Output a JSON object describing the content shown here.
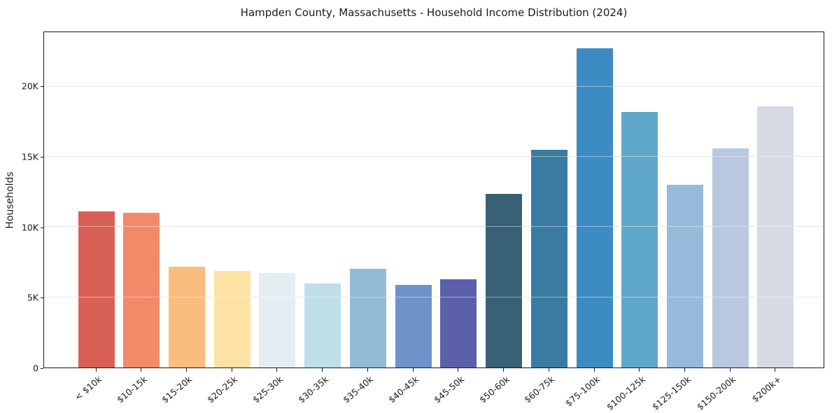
{
  "chart_data": {
    "type": "bar",
    "title": "Hampden County, Massachusetts - Household Income Distribution (2024)",
    "xlabel": "",
    "ylabel": "Households",
    "categories": [
      "< $10k",
      "$10-15k",
      "$15-20k",
      "$20-25k",
      "$25-30k",
      "$30-35k",
      "$35-40k",
      "$40-45k",
      "$45-50k",
      "$50-60k",
      "$60-75k",
      "$75-100k",
      "$100-125k",
      "$125-150k",
      "$150-200k",
      "$200k+"
    ],
    "values": [
      11100,
      11000,
      7200,
      6900,
      6750,
      6000,
      7050,
      5900,
      6300,
      12350,
      15500,
      22750,
      18200,
      13000,
      15600,
      18600
    ],
    "bar_colors": [
      "#d86057",
      "#f28a6a",
      "#fbbd7e",
      "#fde2a4",
      "#e4eef2",
      "#bedfe9",
      "#93bbd7",
      "#6e93c9",
      "#5c60aa",
      "#396175",
      "#397ba1",
      "#3c8cc3",
      "#60a8ca",
      "#96bada",
      "#b9c8e0",
      "#d7d9e5"
    ],
    "ylim": [
      0,
      23888
    ],
    "yticks": [
      {
        "value": 0,
        "label": "0"
      },
      {
        "value": 5000,
        "label": "5K"
      },
      {
        "value": 10000,
        "label": "10K"
      },
      {
        "value": 15000,
        "label": "15K"
      },
      {
        "value": 20000,
        "label": "20K"
      }
    ],
    "grid": "horizontal",
    "legend": "none",
    "colors": {
      "background": "#ffffff",
      "spine": "#1a1a1a",
      "grid": "#e3e3e3",
      "text": "#1a1a1a"
    }
  }
}
